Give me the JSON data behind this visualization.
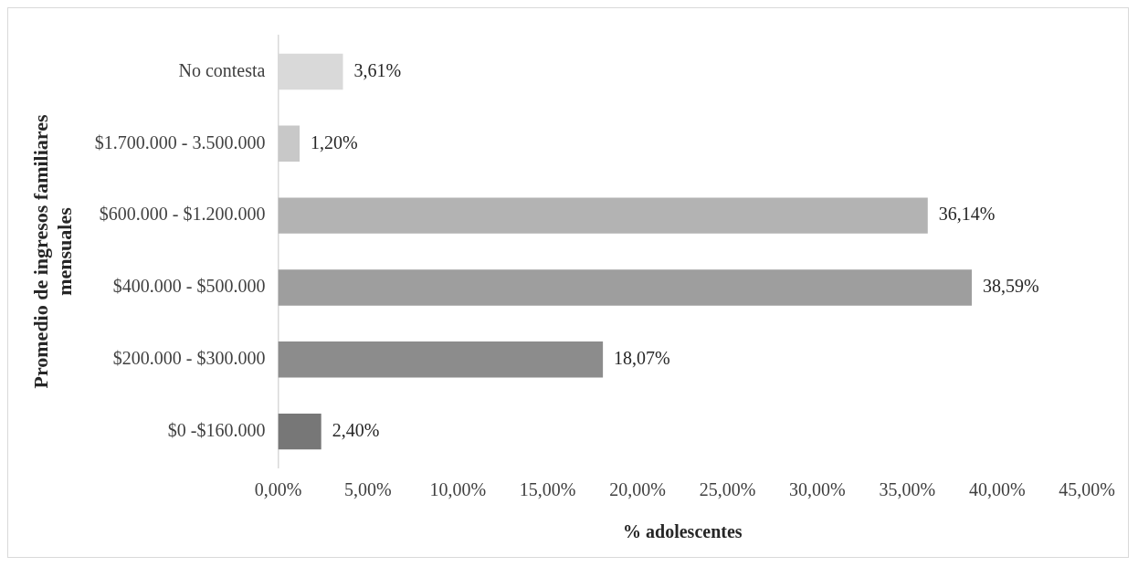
{
  "chart_data": {
    "type": "bar",
    "orientation": "horizontal",
    "xlabel": "% adolescentes",
    "ylabel": "Promedio de ingresos familiares mensuales",
    "categories": [
      "No contesta",
      "$1.700.000 - 3.500.000",
      "$600.000 - $1.200.000",
      "$400.000 - $500.000",
      "$200.000 - $300.000",
      "$0 -$160.000"
    ],
    "values": [
      3.61,
      1.2,
      36.14,
      38.59,
      18.07,
      2.4
    ],
    "colors": [
      "#d9d9d9",
      "#c8c8c8",
      "#b3b3b3",
      "#9e9e9e",
      "#8c8c8c",
      "#777777"
    ],
    "value_labels": [
      "3,61%",
      "1,20%",
      "36,14%",
      "38,59%",
      "18,07%",
      "2,40%"
    ],
    "xlim": [
      0,
      45
    ],
    "xticks": [
      {
        "value": 0,
        "label": "0,00%"
      },
      {
        "value": 5,
        "label": "5,00%"
      },
      {
        "value": 10,
        "label": "10,00%"
      },
      {
        "value": 15,
        "label": "15,00%"
      },
      {
        "value": 20,
        "label": "20,00%"
      },
      {
        "value": 25,
        "label": "25,00%"
      },
      {
        "value": 30,
        "label": "30,00%"
      },
      {
        "value": 35,
        "label": "35,00%"
      },
      {
        "value": 40,
        "label": "40,00%"
      },
      {
        "value": 45,
        "label": "45,00%"
      }
    ],
    "grid": false,
    "legend": false
  }
}
